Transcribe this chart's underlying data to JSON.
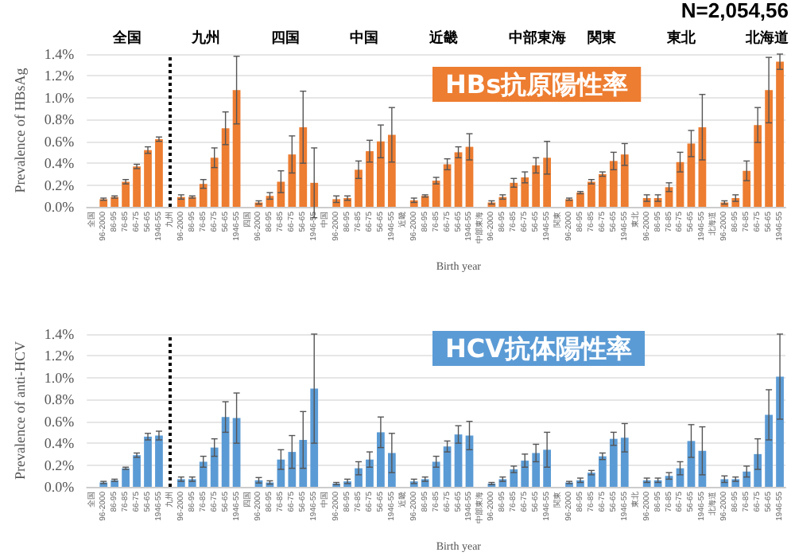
{
  "chart_data": [
    {
      "type": "bar",
      "title": "HBs抗原陽性率",
      "subtitle": "N=2,054,56",
      "xlabel": "Birth year",
      "ylabel": "Prevalence of HBsAg",
      "grid": "y",
      "annotations": [
        "全国",
        "九州",
        "四国",
        "中国",
        "近畿",
        "中部東海",
        "関東",
        "東北",
        "北海道"
      ],
      "ref_lines": [
        {
          "axis": "x",
          "value": "九州",
          "color": "#000000",
          "line_style": "dotted"
        }
      ],
      "categories": [
        "全国",
        "96-2000",
        "86-95",
        "76-85",
        "66-75",
        "56-65",
        "1946-55",
        "九州",
        "96-2000",
        "86-95",
        "76-85",
        "66-75",
        "56-65",
        "1946-55",
        "四国",
        "96-2000",
        "86-95",
        "76-85",
        "66-75",
        "56-65",
        "1946-55",
        "中国",
        "96-2000",
        "86-95",
        "76-85",
        "66-75",
        "56-65",
        "1946-55",
        "近畿",
        "96-2000",
        "86-95",
        "76-85",
        "66-75",
        "56-65",
        "1946-55",
        "中部東海",
        "96-2000",
        "86-95",
        "76-85",
        "66-75",
        "56-65",
        "1946-55",
        "関東",
        "96-2000",
        "86-95",
        "76-85",
        "66-75",
        "56-65",
        "1946-55",
        "東北",
        "96-2000",
        "86-95",
        "76-85",
        "66-75",
        "56-65",
        "1946-55",
        "北海道",
        "96-2000",
        "86-95",
        "76-85",
        "66-75",
        "56-65",
        "1946-55"
      ],
      "ylim": [
        0,
        1.4
      ],
      "yticks": [
        {
          "value": 0,
          "label": "0.0%"
        },
        {
          "value": 0.2,
          "label": "0.2%"
        },
        {
          "value": 0.4,
          "label": "0.4%"
        },
        {
          "value": 0.6,
          "label": "0.6%"
        },
        {
          "value": 0.8,
          "label": "0.8%"
        },
        {
          "value": 1,
          "label": "1.0%"
        },
        {
          "value": 1.2,
          "label": "1.2%"
        },
        {
          "value": 1.4,
          "label": "1.4%"
        }
      ],
      "series": [
        {
          "color": "#ed7d31",
          "values": [
            null,
            0.07,
            0.09,
            0.23,
            0.37,
            0.52,
            0.62,
            null,
            0.09,
            0.09,
            0.21,
            0.45,
            0.72,
            1.07,
            null,
            0.04,
            0.1,
            0.23,
            0.48,
            0.73,
            0.22,
            null,
            0.07,
            0.08,
            0.34,
            0.51,
            0.6,
            0.66,
            null,
            0.06,
            0.1,
            0.24,
            0.39,
            0.5,
            0.55,
            null,
            0.04,
            0.09,
            0.22,
            0.27,
            0.38,
            0.45,
            null,
            0.07,
            0.13,
            0.23,
            0.3,
            0.42,
            0.48,
            null,
            0.08,
            0.08,
            0.18,
            0.41,
            0.58,
            0.73,
            null,
            0.04,
            0.08,
            0.33,
            0.75,
            1.07,
            1.33
          ],
          "errors": [
            null,
            0.01,
            0.01,
            0.02,
            0.02,
            0.03,
            0.02,
            null,
            0.02,
            0.01,
            0.04,
            0.09,
            0.15,
            0.31,
            null,
            0.015,
            0.03,
            0.1,
            0.17,
            0.33,
            0.32,
            null,
            0.03,
            0.02,
            0.08,
            0.1,
            0.15,
            0.25,
            null,
            0.02,
            0.01,
            0.03,
            0.05,
            0.05,
            0.12,
            null,
            0.015,
            0.02,
            0.04,
            0.05,
            0.07,
            0.15,
            null,
            0.01,
            0.01,
            0.02,
            0.02,
            0.08,
            0.1,
            null,
            0.03,
            0.03,
            0.04,
            0.09,
            0.12,
            0.3,
            null,
            0.015,
            0.03,
            0.09,
            0.16,
            0.3,
            0.07
          ]
        }
      ]
    },
    {
      "type": "bar",
      "title": "HCV抗体陽性率",
      "xlabel": "Birth year",
      "ylabel": "Prevalence of anti-HCV",
      "grid": "y",
      "ref_lines": [
        {
          "axis": "x",
          "value": "九州",
          "color": "#000000",
          "line_style": "dotted"
        }
      ],
      "categories": [
        "全国",
        "96-2000",
        "86-95",
        "76-85",
        "66-75",
        "56-65",
        "1946-55",
        "九州",
        "96-2000",
        "86-95",
        "76-85",
        "66-75",
        "56-65",
        "1946-55",
        "四国",
        "96-2000",
        "86-95",
        "76-85",
        "66-75",
        "56-65",
        "1946-55",
        "中国",
        "96-2000",
        "86-95",
        "76-85",
        "66-75",
        "56-65",
        "1946-55",
        "近畿",
        "96-2000",
        "86-95",
        "76-85",
        "66-75",
        "56-65",
        "1946-55",
        "中部東海",
        "96-2000",
        "86-95",
        "76-85",
        "66-75",
        "56-65",
        "1946-55",
        "関東",
        "96-2000",
        "86-95",
        "76-85",
        "66-75",
        "56-65",
        "1946-55",
        "東北",
        "96-2000",
        "86-95",
        "76-85",
        "66-75",
        "56-65",
        "1946-55",
        "北海道",
        "96-2000",
        "86-95",
        "76-85",
        "66-75",
        "56-65",
        "1946-55"
      ],
      "ylim": [
        0,
        1.4
      ],
      "yticks": [
        {
          "value": 0,
          "label": "0.0%"
        },
        {
          "value": 0.2,
          "label": "0.2%"
        },
        {
          "value": 0.4,
          "label": "0.4%"
        },
        {
          "value": 0.6,
          "label": "0.6%"
        },
        {
          "value": 0.8,
          "label": "0.8%"
        },
        {
          "value": 1,
          "label": "1.0%"
        },
        {
          "value": 1.2,
          "label": "1.2%"
        },
        {
          "value": 1.4,
          "label": "1.4%"
        }
      ],
      "series": [
        {
          "color": "#5b9bd5",
          "values": [
            null,
            0.04,
            0.06,
            0.17,
            0.29,
            0.46,
            0.47,
            null,
            0.07,
            0.07,
            0.23,
            0.36,
            0.64,
            0.63,
            null,
            0.06,
            0.04,
            0.25,
            0.32,
            0.43,
            0.9,
            null,
            0.03,
            0.05,
            0.17,
            0.25,
            0.5,
            0.31,
            null,
            0.05,
            0.07,
            0.23,
            0.37,
            0.48,
            0.47,
            null,
            0.03,
            0.07,
            0.16,
            0.24,
            0.31,
            0.34,
            null,
            0.04,
            0.06,
            0.13,
            0.28,
            0.44,
            0.45,
            null,
            0.06,
            0.06,
            0.1,
            0.17,
            0.42,
            0.33,
            null,
            0.07,
            0.07,
            0.14,
            0.3,
            0.66,
            1.01
          ],
          "errors": [
            null,
            0.01,
            0.01,
            0.01,
            0.02,
            0.03,
            0.04,
            null,
            0.02,
            0.02,
            0.05,
            0.08,
            0.14,
            0.23,
            null,
            0.025,
            0.015,
            0.09,
            0.15,
            0.26,
            0.5,
            null,
            0.01,
            0.02,
            0.06,
            0.07,
            0.14,
            0.18,
            null,
            0.02,
            0.02,
            0.05,
            0.05,
            0.08,
            0.13,
            null,
            0.01,
            0.02,
            0.03,
            0.06,
            0.08,
            0.16,
            null,
            0.01,
            0.02,
            0.02,
            0.03,
            0.06,
            0.13,
            null,
            0.02,
            0.02,
            0.03,
            0.06,
            0.15,
            0.22,
            null,
            0.03,
            0.02,
            0.05,
            0.14,
            0.23,
            0.39
          ]
        }
      ]
    }
  ]
}
